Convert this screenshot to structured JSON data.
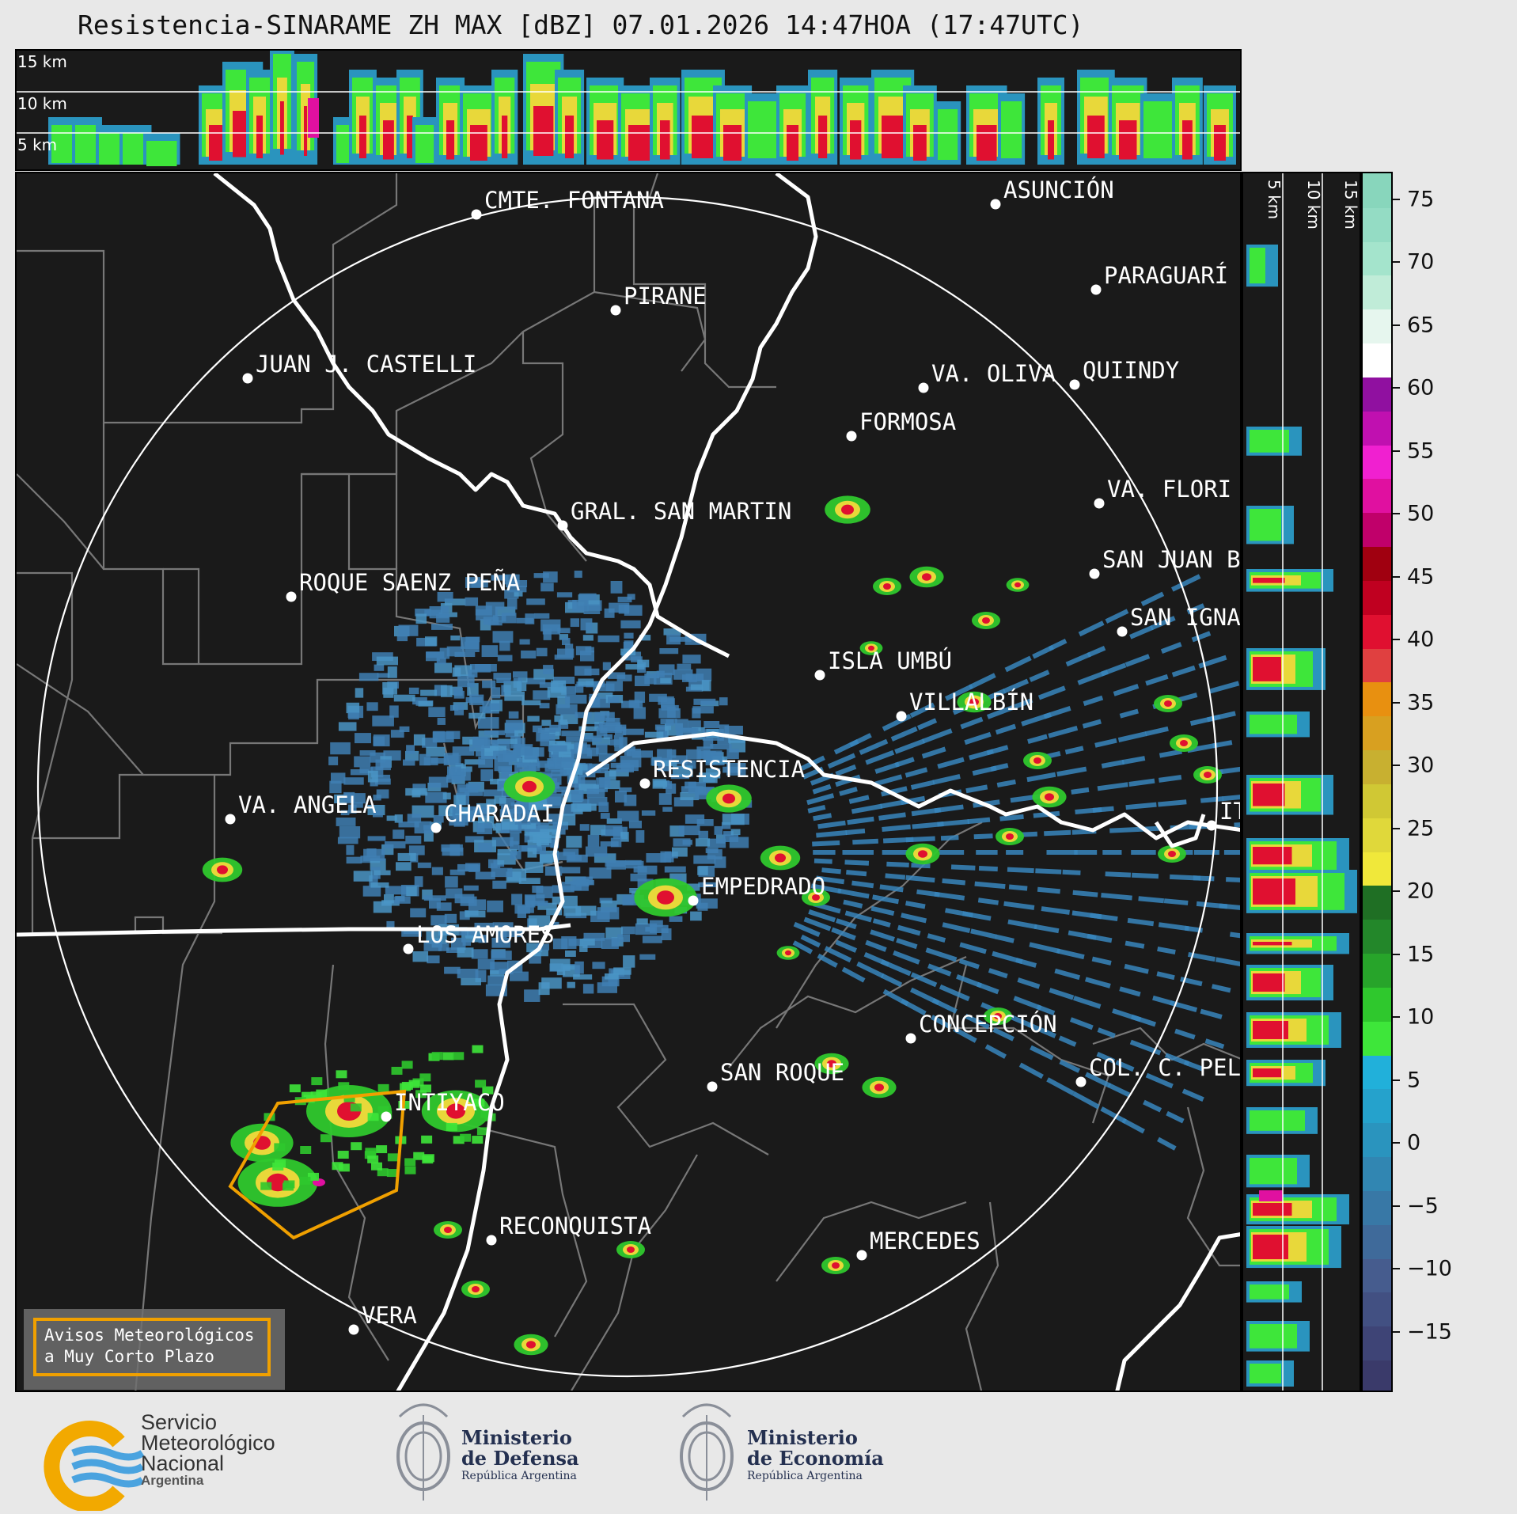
{
  "title": "Resistencia-SINARAME ZH MAX [dBZ] 07.01.2026 14:47HOA (17:47UTC)",
  "top_profile": {
    "km_labels": [
      "15 km",
      "10 km",
      "5 km"
    ]
  },
  "side_profile": {
    "km_labels": [
      "5 km",
      "10 km",
      "15 km"
    ]
  },
  "colorbar": {
    "unit": "dBZ",
    "ticks": [
      "75",
      "70",
      "65",
      "60",
      "55",
      "50",
      "45",
      "40",
      "35",
      "30",
      "25",
      "20",
      "15",
      "10",
      "5",
      "0",
      "−5",
      "−10",
      "−15"
    ],
    "colors": [
      "#3a3a6a",
      "#3e4476",
      "#425082",
      "#465c8e",
      "#3f6a9a",
      "#3878a6",
      "#3186b2",
      "#2a94be",
      "#25a2cc",
      "#21b0da",
      "#3ee63a",
      "#2fc82d",
      "#27a42a",
      "#23872a",
      "#1f6f24",
      "#f0e83a",
      "#e0d83a",
      "#d0c834",
      "#c8b030",
      "#d8a020",
      "#e89010",
      "#e04040",
      "#e01030",
      "#c00020",
      "#a00010",
      "#c0006a",
      "#e010a0",
      "#f020d0",
      "#c010b0",
      "#9010a0",
      "#ffffff",
      "#e6f6ee",
      "#c0ecd8",
      "#a4e4cc",
      "#94dcc4",
      "#88d6bc"
    ]
  },
  "cities": [
    {
      "name": "CMTE. FONTANA"
    },
    {
      "name": "ASUNCIÓN"
    },
    {
      "name": "PARAGUARÍ"
    },
    {
      "name": "PIRANE"
    },
    {
      "name": "JUAN J. CASTELLI"
    },
    {
      "name": "VA. OLIVA"
    },
    {
      "name": "QUIINDY"
    },
    {
      "name": "FORMOSA"
    },
    {
      "name": "VA. FLORI"
    },
    {
      "name": "GRAL. SAN MARTIN"
    },
    {
      "name": "SAN JUAN B"
    },
    {
      "name": "ROQUE SAENZ PEÑA"
    },
    {
      "name": "SAN IGNA"
    },
    {
      "name": "ISLA UMBÚ"
    },
    {
      "name": "VILLALBÍN"
    },
    {
      "name": "RESISTENCIA"
    },
    {
      "name": "VA. ANGELA"
    },
    {
      "name": "CHARADAI"
    },
    {
      "name": "IT"
    },
    {
      "name": "EMPEDRADO"
    },
    {
      "name": "LOS AMORES"
    },
    {
      "name": "CONCEPCIÓN"
    },
    {
      "name": "SAN ROQUE"
    },
    {
      "name": "COL. C. PEL"
    },
    {
      "name": "INTIYACO"
    },
    {
      "name": "RECONQUISTA"
    },
    {
      "name": "MERCEDES"
    },
    {
      "name": "VERA"
    }
  ],
  "warning_legend": {
    "line1": "Avisos Meteorológicos",
    "line2": "a Muy Corto Plazo",
    "color": "#f0a000"
  },
  "footer": {
    "smn": {
      "line1": "Servicio",
      "line2": "Meteorológico",
      "line3": "Nacional",
      "line4": "Argentina"
    },
    "defensa": {
      "line1": "Ministerio",
      "line2": "de Defensa",
      "line3": "República Argentina"
    },
    "economia": {
      "line1": "Ministerio",
      "line2": "de Economía",
      "line3": "República Argentina"
    }
  }
}
